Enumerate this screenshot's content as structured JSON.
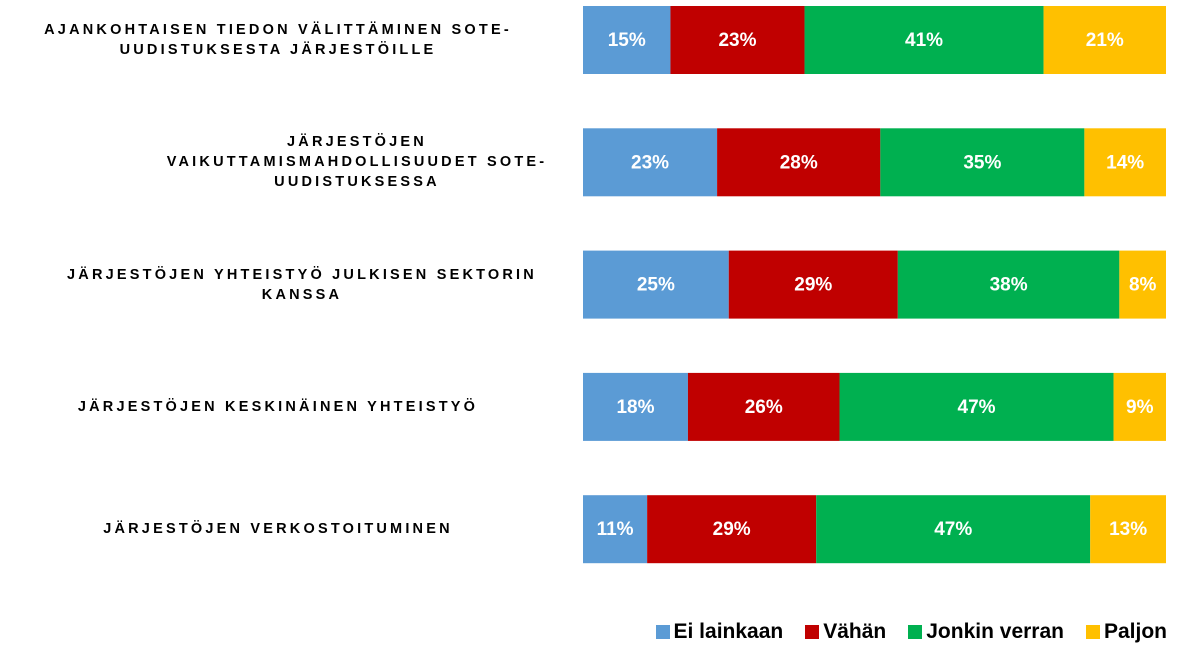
{
  "chart_data": {
    "type": "stacked-bar-horizontal",
    "categories": [
      "AJANKOHTAISEN TIEDON VÄLITTÄMINEN SOTE-UUDISTUKSESTA JÄRJESTÖILLE",
      "JÄRJESTÖJEN VAIKUTTAMISMAHDOLLISUUDET SOTE-UUDISTUKSESSA",
      "JÄRJESTÖJEN YHTEISTYÖ JULKISEN SEKTORIN KANSSA",
      "JÄRJESTÖJEN KESKINÄINEN YHTEISTYÖ",
      "JÄRJESTÖJEN VERKOSTOITUMINEN"
    ],
    "series": [
      {
        "name": "Ei lainkaan",
        "color": "#5b9bd5",
        "values": [
          15,
          23,
          25,
          18,
          11
        ],
        "value_labels": [
          "15%",
          "23%",
          "25%",
          "18%",
          "11%"
        ]
      },
      {
        "name": "Vähän",
        "color": "#c00000",
        "values": [
          23,
          28,
          29,
          26,
          29
        ],
        "value_labels": [
          "23%",
          "28%",
          "29%",
          "26%",
          "29%"
        ]
      },
      {
        "name": "Jonkin verran",
        "color": "#00b050",
        "values": [
          41,
          35,
          38,
          47,
          47
        ],
        "value_labels": [
          "41%",
          "35%",
          "38%",
          "47%",
          "47%"
        ]
      },
      {
        "name": "Paljon",
        "color": "#ffc000",
        "values": [
          21,
          14,
          8,
          9,
          13
        ],
        "value_labels": [
          "21%",
          "14%",
          "8%",
          "9%",
          "13%"
        ]
      }
    ],
    "legend": "bottom-right"
  }
}
